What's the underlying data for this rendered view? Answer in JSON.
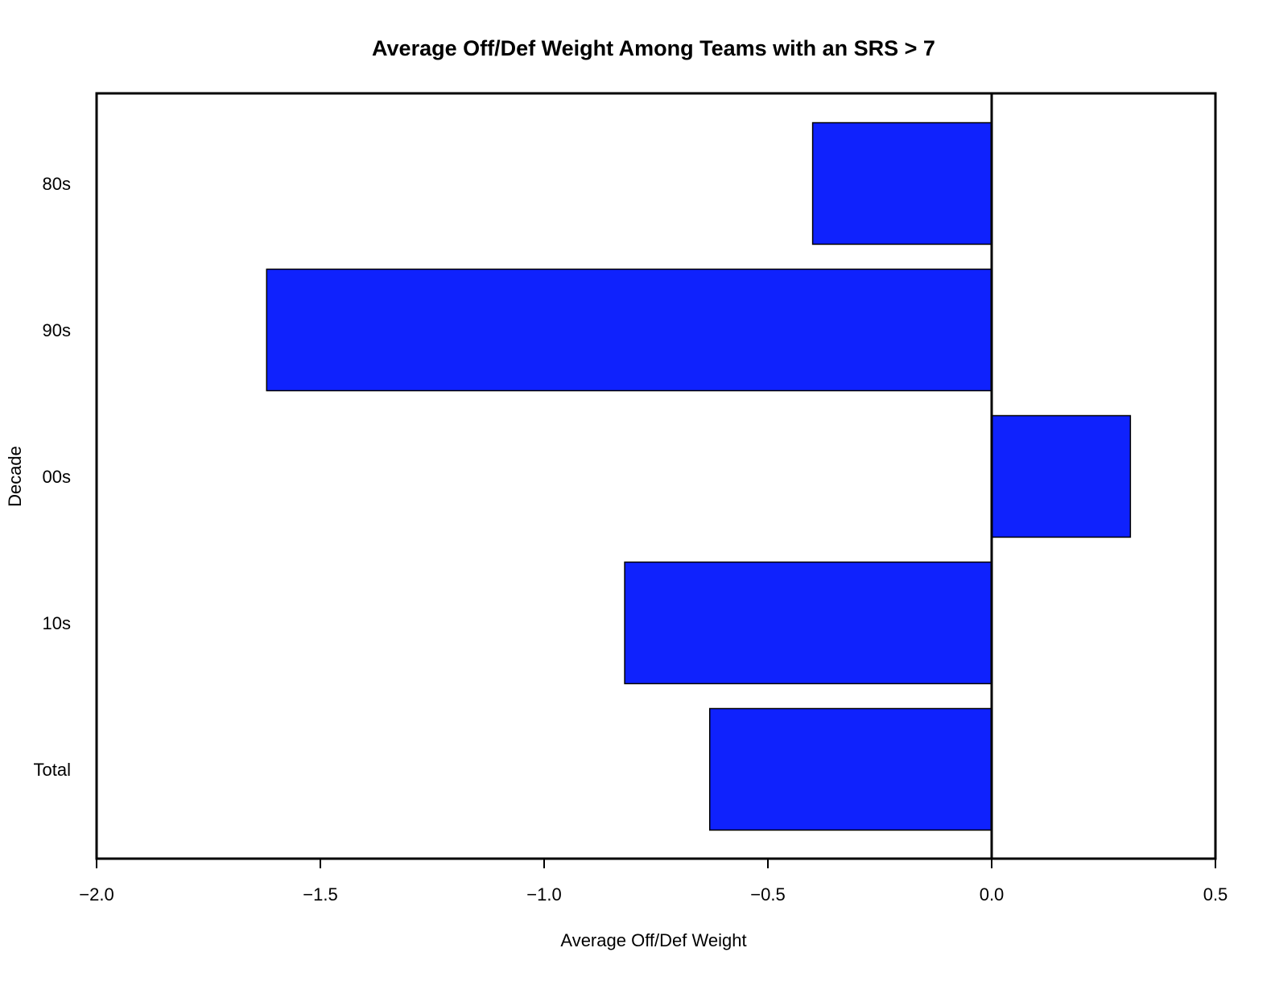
{
  "chart_data": {
    "type": "bar",
    "orientation": "horizontal",
    "title": "Average Off/Def Weight Among Teams with an SRS > 7",
    "xlabel": "Average Off/Def Weight",
    "ylabel": "Decade",
    "categories": [
      "80s",
      "90s",
      "00s",
      "10s",
      "Total"
    ],
    "values": [
      -0.4,
      -1.62,
      0.31,
      -0.82,
      -0.63
    ],
    "xlim": [
      -2.0,
      0.5
    ],
    "xticks": [
      -2.0,
      -1.5,
      -1.0,
      -0.5,
      0.0,
      0.5
    ],
    "xtick_labels": [
      "−2.0",
      "−1.5",
      "−1.0",
      "−0.5",
      "0.0",
      "0.5"
    ],
    "bar_color": "#0f22fd",
    "grid": false,
    "legend": "none",
    "reference_line": 0.0
  }
}
